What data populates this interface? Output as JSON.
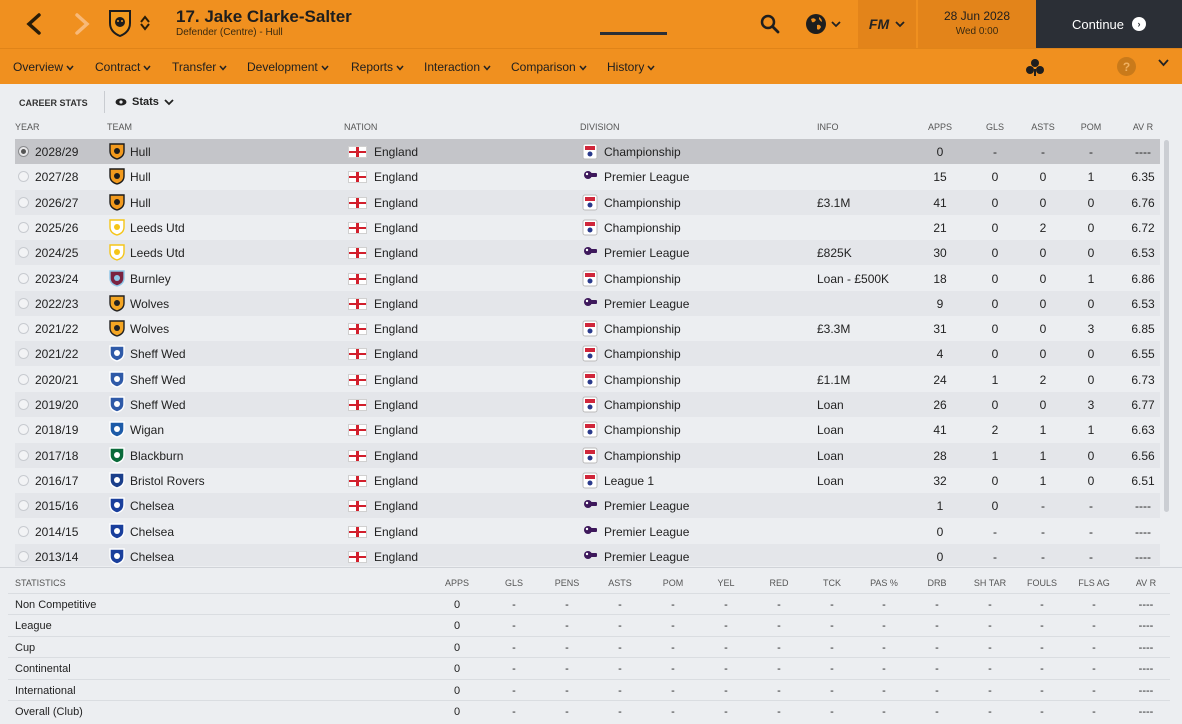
{
  "header": {
    "player_title": "17. Jake Clarke-Salter",
    "player_subtitle": "Defender (Centre) - Hull",
    "date": "28 Jun 2028",
    "time": "Wed 0:00",
    "fm_label": "FM",
    "continue_label": "Continue",
    "accent_color": "#f0901f"
  },
  "nav": {
    "items": [
      {
        "label": "Overview"
      },
      {
        "label": "Contract"
      },
      {
        "label": "Transfer"
      },
      {
        "label": "Development"
      },
      {
        "label": "Reports"
      },
      {
        "label": "Interaction"
      },
      {
        "label": "Comparison"
      },
      {
        "label": "History"
      }
    ],
    "active": "History",
    "help_label": "?"
  },
  "subbar": {
    "section_label": "CAREER STATS",
    "view_label": "Stats"
  },
  "career": {
    "columns": [
      "YEAR",
      "TEAM",
      "NATION",
      "DIVISION",
      "INFO",
      "APPS",
      "GLS",
      "ASTS",
      "POM",
      "AV R"
    ],
    "rows": [
      {
        "year": "2028/29",
        "team": "Hull",
        "nation": "England",
        "division": "Championship",
        "info": "",
        "apps": "0",
        "gls": "-",
        "asts": "-",
        "pom": "-",
        "avr": "----"
      },
      {
        "year": "2027/28",
        "team": "Hull",
        "nation": "England",
        "division": "Premier League",
        "info": "",
        "apps": "15",
        "gls": "0",
        "asts": "0",
        "pom": "1",
        "avr": "6.35"
      },
      {
        "year": "2026/27",
        "team": "Hull",
        "nation": "England",
        "division": "Championship",
        "info": "£3.1M",
        "apps": "41",
        "gls": "0",
        "asts": "0",
        "pom": "0",
        "avr": "6.76"
      },
      {
        "year": "2025/26",
        "team": "Leeds Utd",
        "nation": "England",
        "division": "Championship",
        "info": "",
        "apps": "21",
        "gls": "0",
        "asts": "2",
        "pom": "0",
        "avr": "6.72"
      },
      {
        "year": "2024/25",
        "team": "Leeds Utd",
        "nation": "England",
        "division": "Premier League",
        "info": "£825K",
        "apps": "30",
        "gls": "0",
        "asts": "0",
        "pom": "0",
        "avr": "6.53"
      },
      {
        "year": "2023/24",
        "team": "Burnley",
        "nation": "England",
        "division": "Championship",
        "info": "Loan - £500K",
        "apps": "18",
        "gls": "0",
        "asts": "0",
        "pom": "1",
        "avr": "6.86"
      },
      {
        "year": "2022/23",
        "team": "Wolves",
        "nation": "England",
        "division": "Premier League",
        "info": "",
        "apps": "9",
        "gls": "0",
        "asts": "0",
        "pom": "0",
        "avr": "6.53"
      },
      {
        "year": "2021/22",
        "team": "Wolves",
        "nation": "England",
        "division": "Championship",
        "info": "£3.3M",
        "apps": "31",
        "gls": "0",
        "asts": "0",
        "pom": "3",
        "avr": "6.85"
      },
      {
        "year": "2021/22",
        "team": "Sheff Wed",
        "nation": "England",
        "division": "Championship",
        "info": "",
        "apps": "4",
        "gls": "0",
        "asts": "0",
        "pom": "0",
        "avr": "6.55"
      },
      {
        "year": "2020/21",
        "team": "Sheff Wed",
        "nation": "England",
        "division": "Championship",
        "info": "£1.1M",
        "apps": "24",
        "gls": "1",
        "asts": "2",
        "pom": "0",
        "avr": "6.73"
      },
      {
        "year": "2019/20",
        "team": "Sheff Wed",
        "nation": "England",
        "division": "Championship",
        "info": "Loan",
        "apps": "26",
        "gls": "0",
        "asts": "0",
        "pom": "3",
        "avr": "6.77"
      },
      {
        "year": "2018/19",
        "team": "Wigan",
        "nation": "England",
        "division": "Championship",
        "info": "Loan",
        "apps": "41",
        "gls": "2",
        "asts": "1",
        "pom": "1",
        "avr": "6.63"
      },
      {
        "year": "2017/18",
        "team": "Blackburn",
        "nation": "England",
        "division": "Championship",
        "info": "Loan",
        "apps": "28",
        "gls": "1",
        "asts": "1",
        "pom": "0",
        "avr": "6.56"
      },
      {
        "year": "2016/17",
        "team": "Bristol Rovers",
        "nation": "England",
        "division": "League 1",
        "info": "Loan",
        "apps": "32",
        "gls": "0",
        "asts": "1",
        "pom": "0",
        "avr": "6.51"
      },
      {
        "year": "2015/16",
        "team": "Chelsea",
        "nation": "England",
        "division": "Premier League",
        "info": "",
        "apps": "1",
        "gls": "0",
        "asts": "-",
        "pom": "-",
        "avr": "----"
      },
      {
        "year": "2014/15",
        "team": "Chelsea",
        "nation": "England",
        "division": "Premier League",
        "info": "",
        "apps": "0",
        "gls": "-",
        "asts": "-",
        "pom": "-",
        "avr": "----"
      },
      {
        "year": "2013/14",
        "team": "Chelsea",
        "nation": "England",
        "division": "Premier League",
        "info": "",
        "apps": "0",
        "gls": "-",
        "asts": "-",
        "pom": "-",
        "avr": "----"
      }
    ]
  },
  "statistics": {
    "columns": [
      "STATISTICS",
      "APPS",
      "GLS",
      "PENS",
      "ASTS",
      "POM",
      "YEL",
      "RED",
      "TCK",
      "PAS %",
      "DRB",
      "SH TAR",
      "FOULS",
      "FLS AG",
      "AV R"
    ],
    "rows": [
      {
        "label": "Non Competitive",
        "values": [
          "0",
          "-",
          "-",
          "-",
          "-",
          "-",
          "-",
          "-",
          "-",
          "-",
          "-",
          "-",
          "-",
          "----"
        ]
      },
      {
        "label": "League",
        "values": [
          "0",
          "-",
          "-",
          "-",
          "-",
          "-",
          "-",
          "-",
          "-",
          "-",
          "-",
          "-",
          "-",
          "----"
        ]
      },
      {
        "label": "Cup",
        "values": [
          "0",
          "-",
          "-",
          "-",
          "-",
          "-",
          "-",
          "-",
          "-",
          "-",
          "-",
          "-",
          "-",
          "----"
        ]
      },
      {
        "label": "Continental",
        "values": [
          "0",
          "-",
          "-",
          "-",
          "-",
          "-",
          "-",
          "-",
          "-",
          "-",
          "-",
          "-",
          "-",
          "----"
        ]
      },
      {
        "label": "International",
        "values": [
          "0",
          "-",
          "-",
          "-",
          "-",
          "-",
          "-",
          "-",
          "-",
          "-",
          "-",
          "-",
          "-",
          "----"
        ]
      },
      {
        "label": "Overall (Club)",
        "values": [
          "0",
          "-",
          "-",
          "-",
          "-",
          "-",
          "-",
          "-",
          "-",
          "-",
          "-",
          "-",
          "-",
          "----"
        ]
      }
    ]
  },
  "club_colors": {
    "Hull": [
      "#f29a1e",
      "#1c1c1c"
    ],
    "Leeds Utd": [
      "#ffffff",
      "#f5c518"
    ],
    "Burnley": [
      "#7a2340",
      "#8fc7e8"
    ],
    "Wolves": [
      "#f5a623",
      "#222222"
    ],
    "Sheff Wed": [
      "#2f5aa8",
      "#ffffff"
    ],
    "Wigan": [
      "#1d5ba8",
      "#ffffff"
    ],
    "Blackburn": [
      "#0a6a3a",
      "#ffffff"
    ],
    "Bristol Rovers": [
      "#1b3f8b",
      "#ffffff"
    ],
    "Chelsea": [
      "#1a3f9c",
      "#ffffff"
    ]
  }
}
